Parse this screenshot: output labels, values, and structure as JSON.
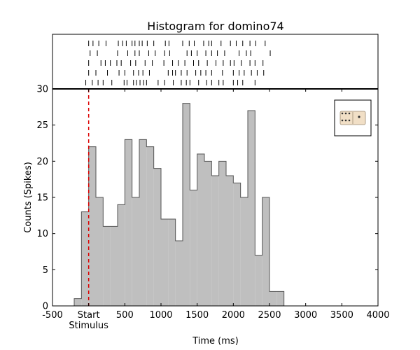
{
  "chart_data": {
    "type": "histogram",
    "title": "Histogram for domino74",
    "xlabel": "Time (ms)",
    "ylabel": "Counts (Spikes)",
    "xlim": [
      -500,
      4000
    ],
    "ylim": [
      0,
      30
    ],
    "grid": false,
    "x_tick_values": [
      -500,
      0,
      500,
      1000,
      1500,
      2000,
      2500,
      3000,
      3500,
      4000
    ],
    "x_tick_labels": [
      "-500",
      "Start",
      "500",
      "1000",
      "1500",
      "2000",
      "2500",
      "3000",
      "3500",
      "4000"
    ],
    "x_tick_sublabels": [
      "",
      "Stimulus",
      "",
      "",
      "",
      "",
      "",
      "",
      "",
      ""
    ],
    "y_tick_values": [
      0,
      5,
      10,
      15,
      20,
      25,
      30
    ],
    "y_tick_labels": [
      "0",
      "5",
      "10",
      "15",
      "20",
      "25",
      "30"
    ],
    "stimulus_marker_x": 0,
    "bin_width": 100,
    "bins": [
      {
        "x": -200,
        "count": 1
      },
      {
        "x": -100,
        "count": 13
      },
      {
        "x": 0,
        "count": 22
      },
      {
        "x": 100,
        "count": 15
      },
      {
        "x": 200,
        "count": 11
      },
      {
        "x": 300,
        "count": 11
      },
      {
        "x": 400,
        "count": 14
      },
      {
        "x": 500,
        "count": 23
      },
      {
        "x": 600,
        "count": 15
      },
      {
        "x": 700,
        "count": 23
      },
      {
        "x": 800,
        "count": 22
      },
      {
        "x": 900,
        "count": 19
      },
      {
        "x": 1000,
        "count": 12
      },
      {
        "x": 1100,
        "count": 12
      },
      {
        "x": 1200,
        "count": 9
      },
      {
        "x": 1300,
        "count": 28
      },
      {
        "x": 1400,
        "count": 16
      },
      {
        "x": 1500,
        "count": 21
      },
      {
        "x": 1600,
        "count": 20
      },
      {
        "x": 1700,
        "count": 18
      },
      {
        "x": 1800,
        "count": 20
      },
      {
        "x": 1900,
        "count": 18
      },
      {
        "x": 2000,
        "count": 17
      },
      {
        "x": 2100,
        "count": 15
      },
      {
        "x": 2200,
        "count": 27
      },
      {
        "x": 2300,
        "count": 7
      },
      {
        "x": 2400,
        "count": 15
      },
      {
        "x": 2500,
        "count": 2
      },
      {
        "x": 2600,
        "count": 2
      }
    ],
    "raster": [
      [
        0,
        60,
        140,
        240,
        410,
        470,
        520,
        600,
        640,
        700,
        740,
        810,
        900,
        1060,
        1110,
        1300,
        1390,
        1460,
        1590,
        1660,
        1700,
        1830,
        1960,
        2040,
        2130,
        2230,
        2310,
        2440
      ],
      [
        20,
        120,
        400,
        540,
        640,
        700,
        830,
        920,
        1050,
        1120,
        1360,
        1420,
        1500,
        1620,
        1700,
        1780,
        1880,
        2080,
        2180,
        2240,
        2510
      ],
      [
        0,
        170,
        230,
        300,
        390,
        450,
        580,
        650,
        780,
        880,
        1040,
        1160,
        1240,
        1330,
        1450,
        1520,
        1640,
        1760,
        1860,
        1960,
        2010,
        2110,
        2230,
        2300,
        2410
      ],
      [
        0,
        100,
        260,
        420,
        500,
        620,
        690,
        750,
        840,
        1100,
        1160,
        1200,
        1280,
        1360,
        1480,
        1550,
        1620,
        1700,
        1850,
        2000,
        2080,
        2150,
        2250,
        2330,
        2420
      ],
      [
        -40,
        50,
        130,
        200,
        320,
        490,
        530,
        620,
        660,
        710,
        760,
        800,
        960,
        1050,
        1170,
        1280,
        1350,
        1400,
        1520,
        1630,
        1700,
        1800,
        1860,
        2000,
        2060,
        2130,
        2300
      ]
    ]
  },
  "icon": "domino-icon",
  "colors": {
    "bar_fill": "#bfbfbf",
    "bar_edge": "#555555",
    "stimulus_line": "#dd0000",
    "domino_fill": "#f1dfc6",
    "domino_pip": "#333333"
  }
}
